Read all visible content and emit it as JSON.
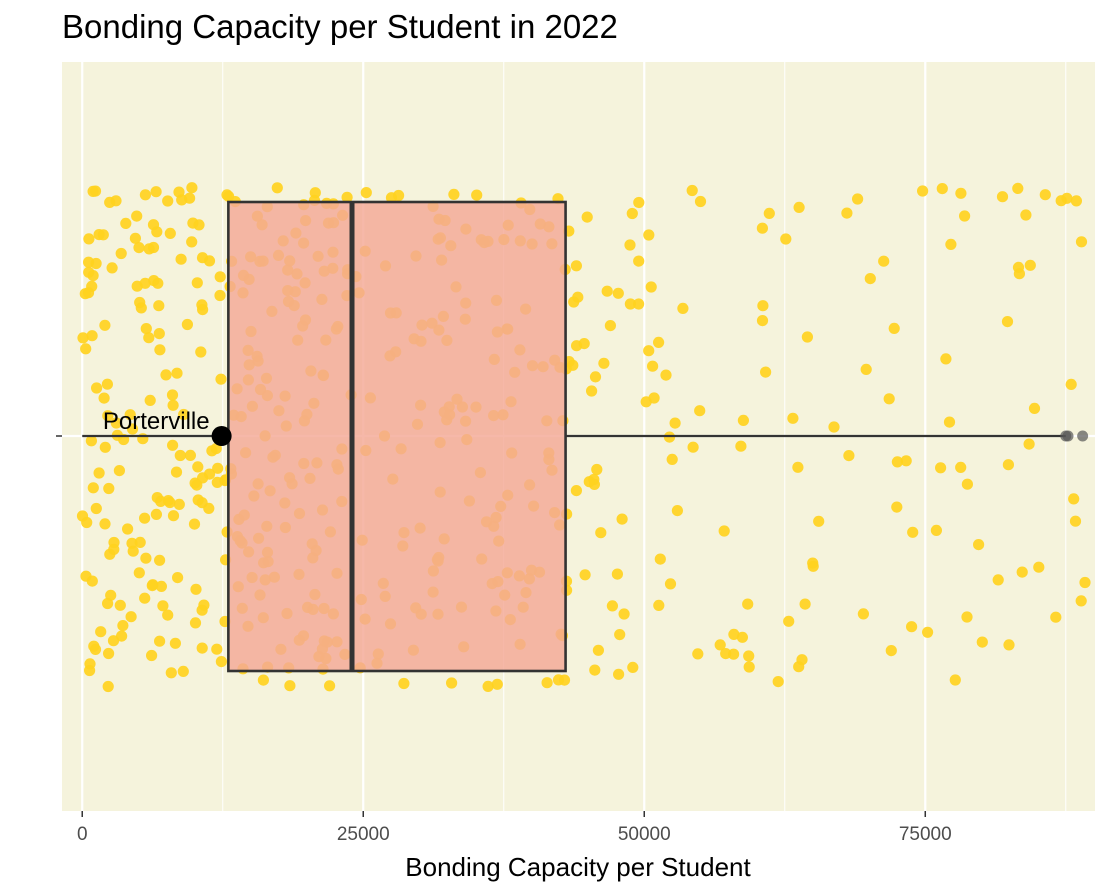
{
  "title": "Bonding Capacity per Student in 2022",
  "colors": {
    "panel_background": "#f5f3dc",
    "grid": "#ffffff",
    "points": "#ffd21f",
    "box_fill": "#f4a896",
    "box_stroke": "#333333",
    "highlight": "#000000"
  },
  "chart_data": {
    "type": "box",
    "title": "Bonding Capacity per Student in 2022",
    "xlabel": "Bonding Capacity per Student",
    "ylabel": "",
    "xlim": [
      -1800,
      90100
    ],
    "x_ticks": [
      0,
      25000,
      50000,
      75000
    ],
    "x_tick_labels": [
      "0",
      "25000",
      "50000",
      "75000"
    ],
    "grid": true,
    "box": {
      "whisker_low": 0,
      "q1": 13000,
      "median": 24000,
      "q3": 43000,
      "whisker_high": 87500,
      "outliers": [
        87500,
        87700,
        89000
      ]
    },
    "highlight": {
      "label": "Porterville",
      "value": 12400
    },
    "jitter_points": {
      "description_count": 600,
      "x_range": [
        0,
        89500
      ],
      "density": "dense below 45000, sparse above"
    }
  }
}
